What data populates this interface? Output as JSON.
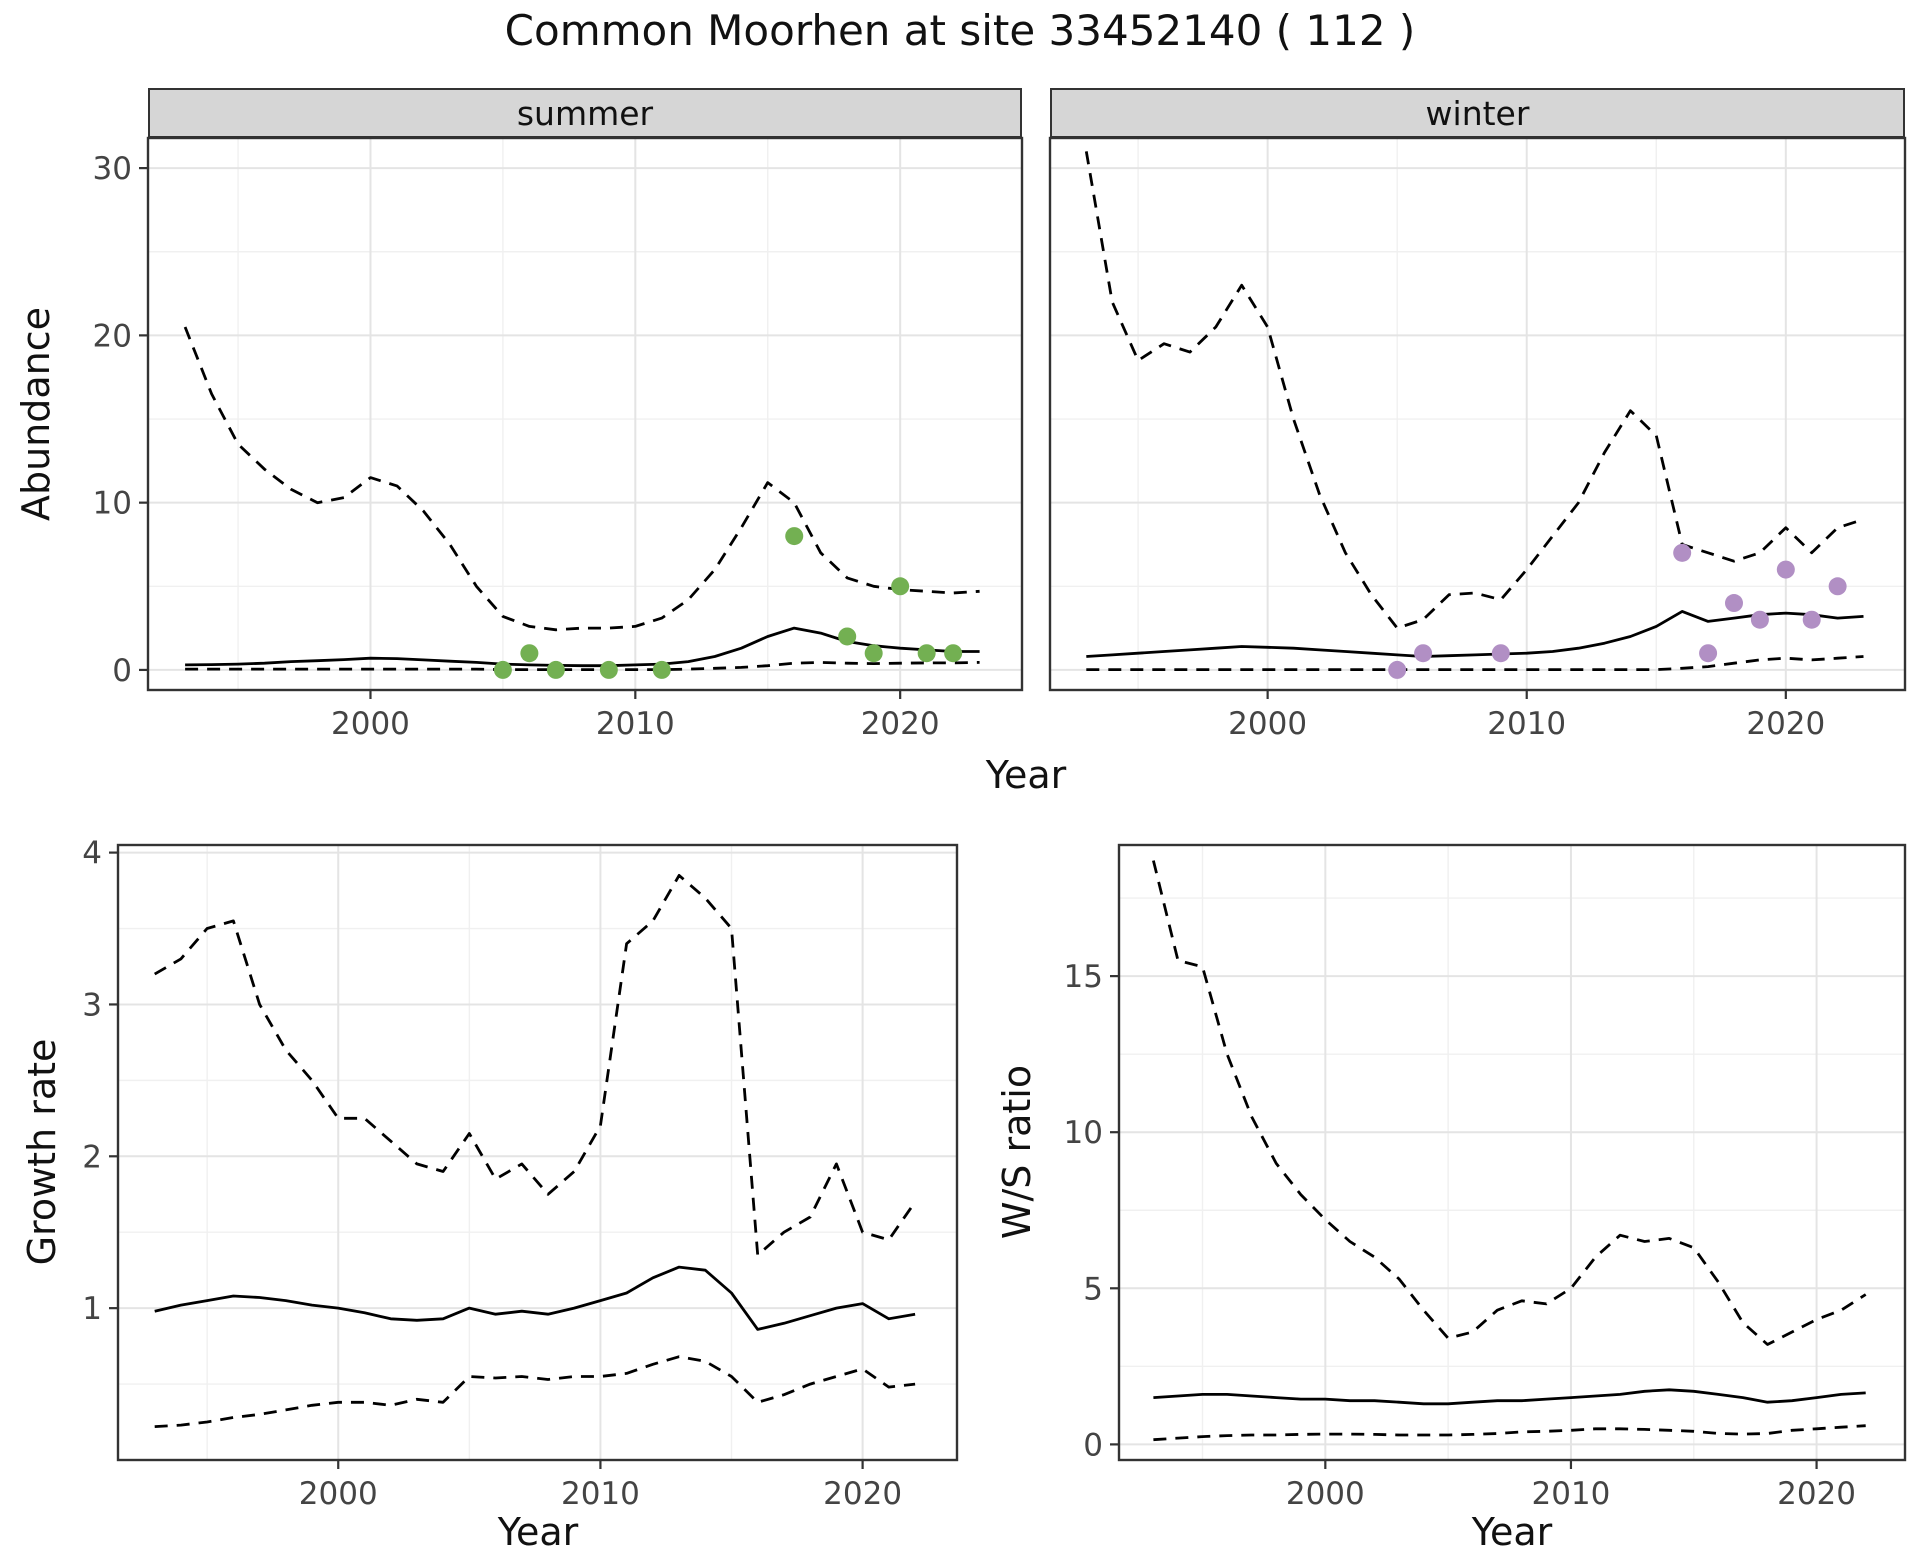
{
  "title": "Common Moorhen at site 33452140 ( 112 )",
  "chart_data": [
    {
      "id": "abundance_summer",
      "type": "line",
      "facet": "summer",
      "xlabel": "Year",
      "ylabel": "Abundance",
      "xlim": [
        1991.6,
        2024.6
      ],
      "ylim": [
        -1.2,
        31.8
      ],
      "xticks": [
        2000,
        2010,
        2020
      ],
      "yticks": [
        0,
        10,
        20,
        30
      ],
      "show_y_axis": true,
      "years": [
        1993,
        1994,
        1995,
        1996,
        1997,
        1998,
        1999,
        2000,
        2001,
        2002,
        2003,
        2004,
        2005,
        2006,
        2007,
        2008,
        2009,
        2010,
        2011,
        2012,
        2013,
        2014,
        2015,
        2016,
        2017,
        2018,
        2019,
        2020,
        2021,
        2022,
        2023
      ],
      "series": [
        {
          "name": "upper_ci",
          "style": "dashed",
          "values": [
            20.5,
            16.5,
            13.5,
            12.0,
            10.8,
            10.0,
            10.3,
            11.5,
            11.0,
            9.5,
            7.5,
            5.0,
            3.2,
            2.6,
            2.4,
            2.5,
            2.5,
            2.6,
            3.1,
            4.2,
            6.0,
            8.5,
            11.2,
            10.0,
            7.0,
            5.5,
            5.0,
            4.8,
            4.7,
            4.6,
            4.7
          ]
        },
        {
          "name": "mean",
          "style": "solid",
          "values": [
            0.3,
            0.32,
            0.35,
            0.4,
            0.5,
            0.55,
            0.62,
            0.7,
            0.68,
            0.6,
            0.52,
            0.45,
            0.35,
            0.3,
            0.27,
            0.25,
            0.25,
            0.3,
            0.35,
            0.5,
            0.8,
            1.3,
            2.0,
            2.5,
            2.2,
            1.7,
            1.45,
            1.3,
            1.2,
            1.1,
            1.1
          ]
        },
        {
          "name": "lower_ci",
          "style": "dashed",
          "values": [
            0.05,
            0.05,
            0.05,
            0.05,
            0.05,
            0.05,
            0.05,
            0.05,
            0.05,
            0.05,
            0.05,
            0.05,
            0.02,
            0.02,
            0.02,
            0.02,
            0.02,
            0.02,
            0.02,
            0.05,
            0.1,
            0.15,
            0.25,
            0.4,
            0.45,
            0.4,
            0.38,
            0.4,
            0.42,
            0.42,
            0.45
          ]
        }
      ],
      "points": {
        "name": "observed_counts",
        "color": "#73b052",
        "data": [
          [
            2005,
            0
          ],
          [
            2006,
            1
          ],
          [
            2007,
            0
          ],
          [
            2009,
            0
          ],
          [
            2011,
            0
          ],
          [
            2016,
            8
          ],
          [
            2018,
            2
          ],
          [
            2019,
            1
          ],
          [
            2020,
            5
          ],
          [
            2021,
            1
          ],
          [
            2022,
            1
          ]
        ]
      }
    },
    {
      "id": "abundance_winter",
      "type": "line",
      "facet": "winter",
      "xlabel": "Year",
      "ylabel": "Abundance",
      "xlim": [
        1991.6,
        2024.6
      ],
      "ylim": [
        -1.2,
        31.8
      ],
      "xticks": [
        2000,
        2010,
        2020
      ],
      "yticks": [
        0,
        10,
        20,
        30
      ],
      "show_y_axis": false,
      "years": [
        1993,
        1994,
        1995,
        1996,
        1997,
        1998,
        1999,
        2000,
        2001,
        2002,
        2003,
        2004,
        2005,
        2006,
        2007,
        2008,
        2009,
        2010,
        2011,
        2012,
        2013,
        2014,
        2015,
        2016,
        2017,
        2018,
        2019,
        2020,
        2021,
        2022,
        2023
      ],
      "series": [
        {
          "name": "upper_ci",
          "style": "dashed",
          "values": [
            31.0,
            22.0,
            18.5,
            19.5,
            19.0,
            20.5,
            23.0,
            20.5,
            15.0,
            10.5,
            7.0,
            4.5,
            2.5,
            3.0,
            4.5,
            4.6,
            4.2,
            6.0,
            8.0,
            10.0,
            13.0,
            15.5,
            14.0,
            7.5,
            7.0,
            6.5,
            7.0,
            8.5,
            7.0,
            8.5,
            9.0
          ]
        },
        {
          "name": "mean",
          "style": "solid",
          "values": [
            0.8,
            0.9,
            1.0,
            1.1,
            1.2,
            1.3,
            1.4,
            1.35,
            1.3,
            1.2,
            1.1,
            1.0,
            0.9,
            0.8,
            0.85,
            0.9,
            0.95,
            1.0,
            1.1,
            1.3,
            1.6,
            2.0,
            2.6,
            3.5,
            2.9,
            3.1,
            3.3,
            3.4,
            3.3,
            3.1,
            3.2
          ]
        },
        {
          "name": "lower_ci",
          "style": "dashed",
          "values": [
            0.02,
            0.02,
            0.02,
            0.02,
            0.02,
            0.02,
            0.02,
            0.02,
            0.02,
            0.02,
            0.02,
            0.02,
            0.02,
            0.02,
            0.02,
            0.02,
            0.02,
            0.02,
            0.02,
            0.02,
            0.02,
            0.02,
            0.02,
            0.1,
            0.2,
            0.4,
            0.6,
            0.7,
            0.6,
            0.7,
            0.8
          ]
        }
      ],
      "points": {
        "name": "observed_counts",
        "color": "#b18fc4",
        "data": [
          [
            2005,
            0
          ],
          [
            2006,
            1
          ],
          [
            2009,
            1
          ],
          [
            2016,
            7
          ],
          [
            2017,
            1
          ],
          [
            2018,
            4
          ],
          [
            2019,
            3
          ],
          [
            2020,
            6
          ],
          [
            2021,
            3
          ],
          [
            2022,
            5
          ]
        ]
      }
    },
    {
      "id": "growth_rate",
      "type": "line",
      "facet": "",
      "xlabel": "Year",
      "ylabel": "Growth rate",
      "xlim": [
        1991.6,
        2023.6
      ],
      "ylim": [
        0,
        4.05
      ],
      "xticks": [
        2000,
        2010,
        2020
      ],
      "yticks": [
        1,
        2,
        3,
        4
      ],
      "show_y_axis": true,
      "years": [
        1993,
        1994,
        1995,
        1996,
        1997,
        1998,
        1999,
        2000,
        2001,
        2002,
        2003,
        2004,
        2005,
        2006,
        2007,
        2008,
        2009,
        2010,
        2011,
        2012,
        2013,
        2014,
        2015,
        2016,
        2017,
        2018,
        2019,
        2020,
        2021,
        2022
      ],
      "series": [
        {
          "name": "upper_ci",
          "style": "dashed",
          "values": [
            3.2,
            3.3,
            3.5,
            3.55,
            3.0,
            2.7,
            2.5,
            2.25,
            2.25,
            2.1,
            1.95,
            1.9,
            2.15,
            1.85,
            1.95,
            1.75,
            1.9,
            2.2,
            3.4,
            3.55,
            3.85,
            3.7,
            3.5,
            1.35,
            1.5,
            1.6,
            1.95,
            1.5,
            1.45,
            1.7
          ]
        },
        {
          "name": "mean",
          "style": "solid",
          "values": [
            0.98,
            1.02,
            1.05,
            1.08,
            1.07,
            1.05,
            1.02,
            1.0,
            0.97,
            0.93,
            0.92,
            0.93,
            1.0,
            0.96,
            0.98,
            0.96,
            1.0,
            1.05,
            1.1,
            1.2,
            1.27,
            1.25,
            1.1,
            0.86,
            0.9,
            0.95,
            1.0,
            1.03,
            0.93,
            0.96
          ]
        },
        {
          "name": "lower_ci",
          "style": "dashed",
          "values": [
            0.22,
            0.23,
            0.25,
            0.28,
            0.3,
            0.33,
            0.36,
            0.38,
            0.38,
            0.36,
            0.4,
            0.38,
            0.55,
            0.54,
            0.55,
            0.53,
            0.55,
            0.55,
            0.57,
            0.63,
            0.68,
            0.65,
            0.55,
            0.38,
            0.43,
            0.5,
            0.55,
            0.6,
            0.48,
            0.5
          ]
        }
      ]
    },
    {
      "id": "ws_ratio",
      "type": "line",
      "facet": "",
      "xlabel": "Year",
      "ylabel": "W/S ratio",
      "xlim": [
        1991.6,
        2023.6
      ],
      "ylim": [
        -0.5,
        19.2
      ],
      "xticks": [
        2000,
        2010,
        2020
      ],
      "yticks": [
        0,
        5,
        10,
        15
      ],
      "show_y_axis": true,
      "years": [
        1993,
        1994,
        1995,
        1996,
        1997,
        1998,
        1999,
        2000,
        2001,
        2002,
        2003,
        2004,
        2005,
        2006,
        2007,
        2008,
        2009,
        2010,
        2011,
        2012,
        2013,
        2014,
        2015,
        2016,
        2017,
        2018,
        2019,
        2020,
        2021,
        2022
      ],
      "series": [
        {
          "name": "upper_ci",
          "style": "dashed",
          "values": [
            18.7,
            15.5,
            15.3,
            12.5,
            10.5,
            9.0,
            8.0,
            7.2,
            6.5,
            6.0,
            5.3,
            4.3,
            3.4,
            3.6,
            4.3,
            4.6,
            4.5,
            5.0,
            6.0,
            6.7,
            6.5,
            6.6,
            6.3,
            5.2,
            3.9,
            3.2,
            3.6,
            4.0,
            4.3,
            4.8
          ]
        },
        {
          "name": "mean",
          "style": "solid",
          "values": [
            1.5,
            1.55,
            1.6,
            1.6,
            1.55,
            1.5,
            1.45,
            1.45,
            1.4,
            1.4,
            1.35,
            1.3,
            1.3,
            1.35,
            1.4,
            1.4,
            1.45,
            1.5,
            1.55,
            1.6,
            1.7,
            1.75,
            1.7,
            1.6,
            1.5,
            1.35,
            1.4,
            1.5,
            1.6,
            1.65
          ]
        },
        {
          "name": "lower_ci",
          "style": "dashed",
          "values": [
            0.15,
            0.2,
            0.25,
            0.28,
            0.3,
            0.3,
            0.32,
            0.33,
            0.33,
            0.32,
            0.3,
            0.3,
            0.3,
            0.32,
            0.35,
            0.4,
            0.42,
            0.45,
            0.5,
            0.5,
            0.48,
            0.45,
            0.42,
            0.35,
            0.33,
            0.35,
            0.45,
            0.5,
            0.55,
            0.6
          ]
        }
      ]
    }
  ],
  "style": {
    "line_color": "#000000",
    "border_color": "#333333",
    "grid_major_color": "#e4e4e4",
    "grid_minor_color": "#f0f0f0",
    "tick_label_color": "#444444",
    "strip_bg": "#d6d6d6",
    "summer_point_color": "#73b052",
    "winter_point_color": "#b18fc4"
  }
}
